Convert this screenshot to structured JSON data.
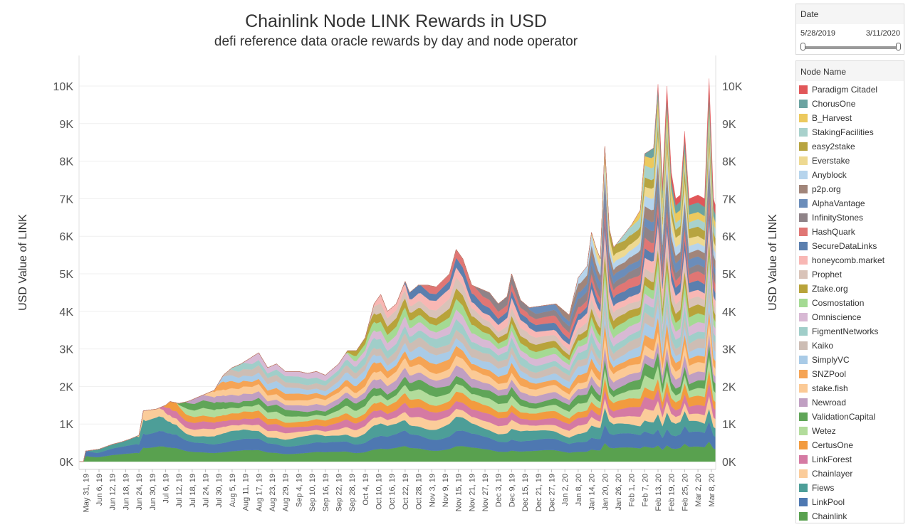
{
  "colors": {
    "Paradigm Citadel": "#e15759",
    "ChorusOne": "#6ba3a1",
    "B_Harvest": "#ecc95e",
    "StakingFacilities": "#a8d1cc",
    "easy2stake": "#b7a440",
    "Everstake": "#eed991",
    "Anyblock": "#b6d4ec",
    "p2p.org": "#a1857a",
    "AlphaVantage": "#6b8dba",
    "InfinityStones": "#8f8388",
    "HashQuark": "#e07674",
    "SecureDataLinks": "#5b7fae",
    "honeycomb.market": "#f8b7b4",
    "Prophet": "#d9c3b8",
    "Ztake.org": "#b8a33a",
    "Cosmostation": "#a4da93",
    "Omniscience": "#d8b9d4",
    "FigmentNetworks": "#a0cec9",
    "Kaiko": "#cdbdb4",
    "SimplyVC": "#a9cbe7",
    "SNZPool": "#f5a455",
    "stake.fish": "#fbca96",
    "Newroad": "#c09fc2",
    "ValidationCapital": "#60a558",
    "Wetez": "#b2dc9b",
    "CertusOne": "#f29b3f",
    "LinkForest": "#d57aa3",
    "Chainlayer": "#fbcc9a",
    "Fiews": "#4d9e98",
    "LinkPool": "#4e78b1",
    "Chainlink": "#59a14f"
  },
  "date_filter": {
    "label": "Date",
    "start": "5/28/2019",
    "end": "3/11/2020",
    "range_fraction": [
      0.0,
      1.0
    ]
  },
  "legend": {
    "title": "Node Name",
    "items": [
      "Paradigm Citadel",
      "ChorusOne",
      "B_Harvest",
      "StakingFacilities",
      "easy2stake",
      "Everstake",
      "Anyblock",
      "p2p.org",
      "AlphaVantage",
      "InfinityStones",
      "HashQuark",
      "SecureDataLinks",
      "honeycomb.market",
      "Prophet",
      "Ztake.org",
      "Cosmostation",
      "Omniscience",
      "FigmentNetworks",
      "Kaiko",
      "SimplyVC",
      "SNZPool",
      "stake.fish",
      "Newroad",
      "ValidationCapital",
      "Wetez",
      "CertusOne",
      "LinkForest",
      "Chainlayer",
      "Fiews",
      "LinkPool",
      "Chainlink"
    ]
  },
  "chart_data": {
    "type": "area",
    "stacked": true,
    "title": "Chainlink Node LINK Rewards in USD",
    "subtitle": "defi reference data oracle rewards by day and node operator",
    "xlabel": "",
    "ylabel": "USD Value of LINK",
    "ylabel_right": "USD Value of LINK",
    "ylim": [
      0,
      10700
    ],
    "yticks": [
      0,
      1000,
      2000,
      3000,
      4000,
      5000,
      6000,
      7000,
      8000,
      9000,
      10000
    ],
    "ytick_labels": [
      "0K",
      "1K",
      "2K",
      "3K",
      "4K",
      "5K",
      "6K",
      "7K",
      "8K",
      "9K",
      "10K"
    ],
    "x_start_day_offset": -3,
    "x_end_day_offset": 284,
    "xticks": [
      {
        "label": "May 31, 19",
        "day": 0
      },
      {
        "label": "Jun 6, 19",
        "day": 6
      },
      {
        "label": "Jun 12, 19",
        "day": 12
      },
      {
        "label": "Jun 18, 19",
        "day": 18
      },
      {
        "label": "Jun 24, 19",
        "day": 24
      },
      {
        "label": "Jun 30, 19",
        "day": 30
      },
      {
        "label": "Jul 6, 19",
        "day": 36
      },
      {
        "label": "Jul 12, 19",
        "day": 42
      },
      {
        "label": "Jul 18, 19",
        "day": 48
      },
      {
        "label": "Jul 24, 19",
        "day": 54
      },
      {
        "label": "Jul 30, 19",
        "day": 60
      },
      {
        "label": "Aug 5, 19",
        "day": 66
      },
      {
        "label": "Aug 11, 19",
        "day": 72
      },
      {
        "label": "Aug 17, 19",
        "day": 78
      },
      {
        "label": "Aug 23, 19",
        "day": 84
      },
      {
        "label": "Aug 29, 19",
        "day": 90
      },
      {
        "label": "Sep 4, 19",
        "day": 96
      },
      {
        "label": "Sep 10, 19",
        "day": 102
      },
      {
        "label": "Sep 16, 19",
        "day": 108
      },
      {
        "label": "Sep 22, 19",
        "day": 114
      },
      {
        "label": "Sep 28, 19",
        "day": 120
      },
      {
        "label": "Oct 4, 19",
        "day": 126
      },
      {
        "label": "Oct 10, 19",
        "day": 132
      },
      {
        "label": "Oct 16, 19",
        "day": 138
      },
      {
        "label": "Oct 22, 19",
        "day": 144
      },
      {
        "label": "Oct 28, 19",
        "day": 150
      },
      {
        "label": "Nov 3, 19",
        "day": 156
      },
      {
        "label": "Nov 9, 19",
        "day": 162
      },
      {
        "label": "Nov 15, 19",
        "day": 168
      },
      {
        "label": "Nov 21, 19",
        "day": 174
      },
      {
        "label": "Nov 27, 19",
        "day": 180
      },
      {
        "label": "Dec 3, 19",
        "day": 186
      },
      {
        "label": "Dec 9, 19",
        "day": 192
      },
      {
        "label": "Dec 15, 19",
        "day": 198
      },
      {
        "label": "Dec 21, 19",
        "day": 204
      },
      {
        "label": "Dec 27, 19",
        "day": 210
      },
      {
        "label": "Jan 2, 20",
        "day": 216
      },
      {
        "label": "Jan 8, 20",
        "day": 222
      },
      {
        "label": "Jan 14, 20",
        "day": 228
      },
      {
        "label": "Jan 20, 20",
        "day": 234
      },
      {
        "label": "Jan 26, 20",
        "day": 240
      },
      {
        "label": "Feb 1, 20",
        "day": 246
      },
      {
        "label": "Feb 7, 20",
        "day": 252
      },
      {
        "label": "Feb 13, 20",
        "day": 258
      },
      {
        "label": "Feb 19, 20",
        "day": 264
      },
      {
        "label": "Feb 25, 20",
        "day": 270
      },
      {
        "label": "Mar 2, 20",
        "day": 276
      },
      {
        "label": "Mar 8, 20",
        "day": 282
      }
    ],
    "series_order_bottom_to_top": [
      "Chainlink",
      "LinkPool",
      "Fiews",
      "Chainlayer",
      "LinkForest",
      "CertusOne",
      "Wetez",
      "ValidationCapital",
      "Newroad",
      "stake.fish",
      "SNZPool",
      "SimplyVC",
      "Kaiko",
      "FigmentNetworks",
      "Omniscience",
      "Cosmostation",
      "Ztake.org",
      "Prophet",
      "honeycomb.market",
      "SecureDataLinks",
      "HashQuark",
      "InfinityStones",
      "AlphaVantage",
      "p2p.org",
      "Anyblock",
      "Everstake",
      "easy2stake",
      "StakingFacilities",
      "B_Harvest",
      "ChorusOne",
      "Paradigm Citadel"
    ],
    "total_anchors_day_value": [
      [
        -3,
        0
      ],
      [
        0,
        280
      ],
      [
        6,
        330
      ],
      [
        12,
        460
      ],
      [
        16,
        520
      ],
      [
        20,
        600
      ],
      [
        24,
        700
      ],
      [
        26,
        1350
      ],
      [
        32,
        1400
      ],
      [
        36,
        1500
      ],
      [
        38,
        1600
      ],
      [
        42,
        1550
      ],
      [
        46,
        1600
      ],
      [
        50,
        1700
      ],
      [
        54,
        1800
      ],
      [
        58,
        1900
      ],
      [
        62,
        2300
      ],
      [
        66,
        2500
      ],
      [
        70,
        2600
      ],
      [
        74,
        2750
      ],
      [
        78,
        2900
      ],
      [
        82,
        2500
      ],
      [
        86,
        2600
      ],
      [
        90,
        2400
      ],
      [
        96,
        2400
      ],
      [
        100,
        2350
      ],
      [
        104,
        2400
      ],
      [
        108,
        2300
      ],
      [
        114,
        2600
      ],
      [
        118,
        2950
      ],
      [
        122,
        2950
      ],
      [
        126,
        3300
      ],
      [
        130,
        4200
      ],
      [
        133,
        4450
      ],
      [
        136,
        4000
      ],
      [
        140,
        4200
      ],
      [
        144,
        4800
      ],
      [
        146,
        4500
      ],
      [
        150,
        4700
      ],
      [
        154,
        4700
      ],
      [
        158,
        4650
      ],
      [
        164,
        5000
      ],
      [
        167,
        5650
      ],
      [
        170,
        5400
      ],
      [
        174,
        4700
      ],
      [
        178,
        4600
      ],
      [
        182,
        4500
      ],
      [
        186,
        4200
      ],
      [
        190,
        4400
      ],
      [
        192,
        5000
      ],
      [
        196,
        4300
      ],
      [
        200,
        4100
      ],
      [
        206,
        4150
      ],
      [
        212,
        4200
      ],
      [
        216,
        4000
      ],
      [
        218,
        3900
      ],
      [
        222,
        4900
      ],
      [
        226,
        5200
      ],
      [
        228,
        6100
      ],
      [
        230,
        5700
      ],
      [
        232,
        5400
      ],
      [
        234,
        8400
      ],
      [
        236,
        6200
      ],
      [
        238,
        5700
      ],
      [
        242,
        6000
      ],
      [
        246,
        6300
      ],
      [
        250,
        6700
      ],
      [
        252,
        8200
      ],
      [
        256,
        8350
      ],
      [
        258,
        10050
      ],
      [
        260,
        7400
      ],
      [
        262,
        10000
      ],
      [
        264,
        7700
      ],
      [
        266,
        7000
      ],
      [
        268,
        7100
      ],
      [
        270,
        8800
      ],
      [
        272,
        7000
      ],
      [
        276,
        7100
      ],
      [
        279,
        7000
      ],
      [
        281,
        10200
      ],
      [
        283,
        7000
      ],
      [
        284,
        6800
      ]
    ],
    "series_start_day": {
      "Chainlink": 0,
      "LinkPool": 0,
      "Fiews": 2,
      "Chainlayer": 24,
      "LinkForest": 34,
      "CertusOne": 36,
      "Wetez": 42,
      "ValidationCapital": 42,
      "Newroad": 46,
      "stake.fish": 54,
      "SNZPool": 58,
      "SimplyVC": 60,
      "Kaiko": 62,
      "FigmentNetworks": 66,
      "Omniscience": 72,
      "Cosmostation": 118,
      "Ztake.org": 118,
      "Prophet": 128,
      "honeycomb.market": 130,
      "SecureDataLinks": 144,
      "HashQuark": 152,
      "InfinityStones": 176,
      "AlphaVantage": 200,
      "p2p.org": 212,
      "Anyblock": 220,
      "Everstake": 228,
      "easy2stake": 234,
      "StakingFacilities": 240,
      "B_Harvest": 246,
      "ChorusOne": 252,
      "Paradigm Citadel": 258
    }
  }
}
